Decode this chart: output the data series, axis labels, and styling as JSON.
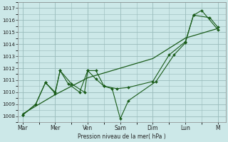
{
  "background_color": "#cce8e8",
  "grid_color": "#99bbbb",
  "line_color": "#1a5c1a",
  "marker_color": "#1a5c1a",
  "day_labels": [
    "Mar",
    "Mer",
    "Ven",
    "Sam",
    "Dim",
    "Lun",
    "M"
  ],
  "day_positions": [
    0,
    2,
    4,
    6,
    8,
    10,
    12
  ],
  "trend_x": [
    0,
    2,
    4,
    6,
    8,
    10,
    12
  ],
  "trend_y": [
    1008.2,
    1009.8,
    1011.2,
    1012.0,
    1012.8,
    1014.5,
    1015.3
  ],
  "line1_x": [
    0,
    0.8,
    1.4,
    2.0,
    2.3,
    2.8,
    3.5,
    4.0,
    4.5,
    5.0,
    5.8,
    6.5,
    8.0,
    9.0,
    10.0,
    10.5,
    11.0,
    12.0
  ],
  "line1_y": [
    1008.1,
    1009.0,
    1010.8,
    1009.9,
    1011.8,
    1010.7,
    1010.0,
    1011.8,
    1011.8,
    1010.5,
    1010.3,
    1010.4,
    1010.9,
    1013.1,
    1014.2,
    1016.4,
    1016.8,
    1015.2
  ],
  "line2_x": [
    0,
    0.8,
    1.4,
    2.0,
    2.3,
    3.0,
    3.8,
    4.0,
    4.5,
    5.0,
    5.5,
    6.0,
    6.5,
    8.2,
    9.3,
    10.0,
    10.5,
    11.5,
    12.0
  ],
  "line2_y": [
    1008.1,
    1009.0,
    1010.8,
    1010.0,
    1011.8,
    1010.7,
    1010.0,
    1011.8,
    1011.1,
    1010.5,
    1010.3,
    1007.8,
    1009.3,
    1010.9,
    1013.1,
    1014.1,
    1016.4,
    1016.2,
    1015.4
  ],
  "ylabel": "Pression niveau de la mer( hPa )",
  "ylim_min": 1007.5,
  "ylim_max": 1017.5,
  "yticks": [
    1008,
    1009,
    1010,
    1011,
    1012,
    1013,
    1014,
    1015,
    1016,
    1017
  ],
  "xlim_min": -0.3,
  "xlim_max": 12.5
}
